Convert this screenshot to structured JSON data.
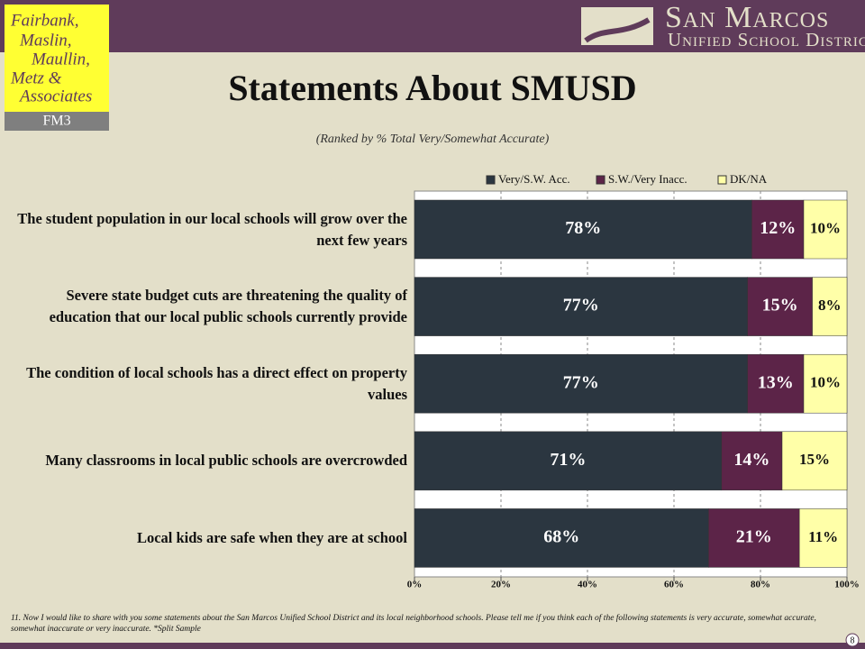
{
  "logo": {
    "firm_lines": [
      "Fairbank,",
      "Maslin,",
      "Maullin,",
      "Metz &",
      "Associates"
    ],
    "firm_short": "FM3",
    "district_name": "San Marcos",
    "district_sub": "Unified School District"
  },
  "chart_data": {
    "type": "bar",
    "orientation": "horizontal",
    "stacked": true,
    "title": "Statements About SMUSD",
    "subtitle": "(Ranked by % Total Very/Somewhat Accurate)",
    "categories": [
      "The student population in our local schools will grow over the next few years",
      "Severe state budget cuts are threatening the quality of education that our local public schools currently provide",
      "The condition of local schools has a direct effect on property values",
      "Many classrooms in local public schools are overcrowded",
      "Local kids are safe when they are at school"
    ],
    "series": [
      {
        "name": "Very/S.W. Acc.",
        "color": "#2b3640",
        "values": [
          78,
          77,
          77,
          71,
          68
        ],
        "value_labels": [
          "78%",
          "77%",
          "77%",
          "71%",
          "68%"
        ]
      },
      {
        "name": "S.W./Very Inacc.",
        "color": "#5c2448",
        "values": [
          12,
          15,
          13,
          14,
          21
        ],
        "value_labels": [
          "12%",
          "15%",
          "13%",
          "14%",
          "21%"
        ]
      },
      {
        "name": "DK/NA",
        "color": "#ffffa8",
        "values": [
          10,
          8,
          10,
          15,
          11
        ],
        "value_labels": [
          "10%",
          "8%",
          "10%",
          "15%",
          "11%"
        ]
      }
    ],
    "xlim": [
      0,
      100
    ],
    "xticks": [
      {
        "value": 0,
        "label": "0%"
      },
      {
        "value": 20,
        "label": "20%"
      },
      {
        "value": 40,
        "label": "40%"
      },
      {
        "value": 60,
        "label": "60%"
      },
      {
        "value": 80,
        "label": "80%"
      },
      {
        "value": 100,
        "label": "100%"
      }
    ],
    "grid": true,
    "legend": "top"
  },
  "footnote": "11. Now I would like to share with you some statements about the San Marcos Unified School District and its local neighborhood schools.  Please tell me if you think each of the following statements is very accurate, somewhat accurate, somewhat inaccurate or very inaccurate. *Split Sample",
  "page_number": "8"
}
